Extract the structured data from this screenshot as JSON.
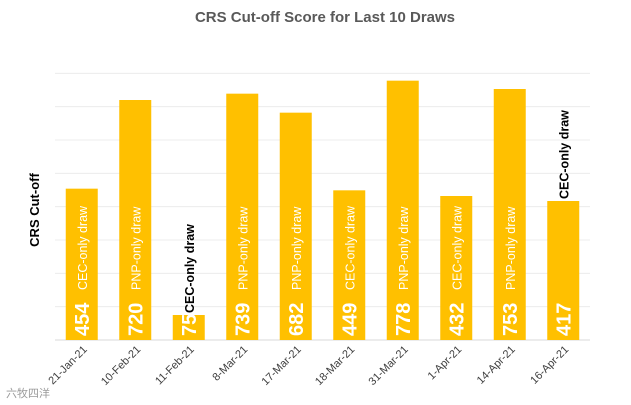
{
  "chart_data": {
    "type": "bar",
    "title": "CRS Cut-off Score for Last 10 Draws",
    "ylabel": "CRS Cut-off",
    "xlabel": "",
    "categories": [
      "21-Jan-21",
      "10-Feb-21",
      "11-Feb-21",
      "8-Mar-21",
      "17-Mar-21",
      "18-Mar-21",
      "31-Mar-21",
      "1-Apr-21",
      "14-Apr-21",
      "16-Apr-21"
    ],
    "values": [
      454,
      720,
      75,
      739,
      682,
      449,
      778,
      432,
      753,
      417
    ],
    "annotations": [
      "CEC-only draw",
      "PNP-only draw",
      "CEC-only draw",
      "PNP-only draw",
      "PNP-only draw",
      "CEC-only draw",
      "PNP-only draw",
      "CEC-only draw",
      "PNP-only draw",
      "CEC-only draw"
    ],
    "ylim": [
      0,
      900
    ],
    "grid": true,
    "legend": "none",
    "bar_color": "#FFC000"
  },
  "watermark": "六牧四洋"
}
